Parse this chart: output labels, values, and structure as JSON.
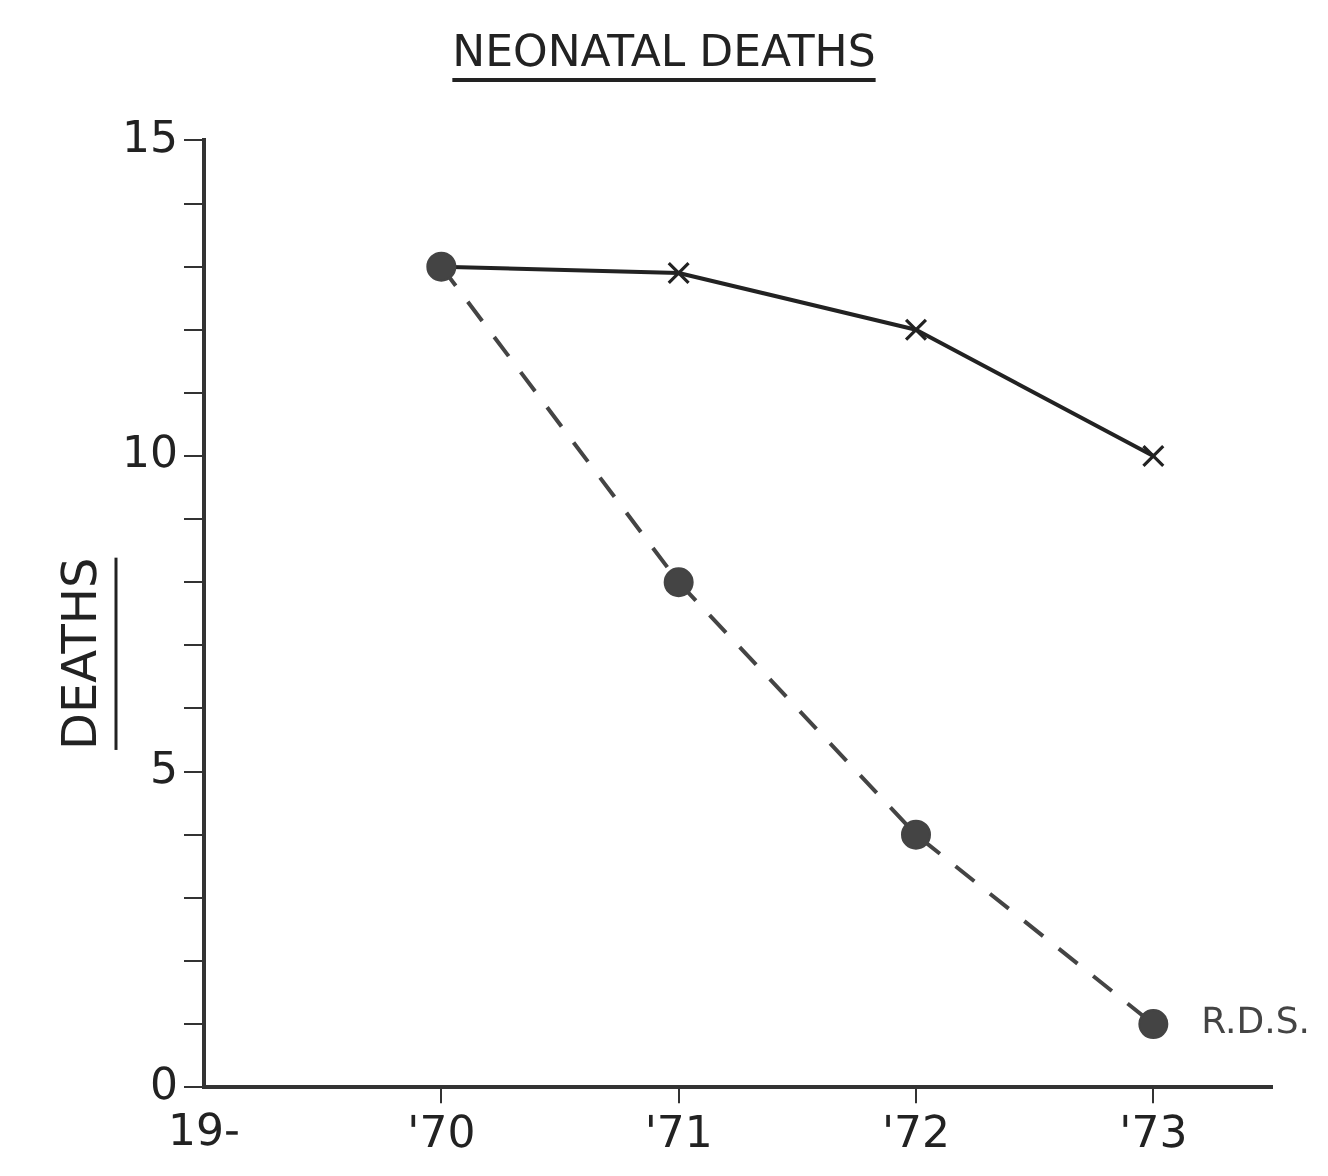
{
  "chart_data": {
    "type": "line",
    "title": "NEONATAL DEATHS",
    "ylabel": "DEATHS",
    "x": [
      1970,
      1971,
      1972,
      1973
    ],
    "xlim": [
      1969,
      1973.5
    ],
    "xlabel": "19-",
    "xticks": [
      {
        "value": 1970,
        "label": "'70"
      },
      {
        "value": 1971,
        "label": "'71"
      },
      {
        "value": 1972,
        "label": "'72"
      },
      {
        "value": 1973,
        "label": "'73"
      }
    ],
    "ylim": [
      0,
      15
    ],
    "yticks": [
      0,
      {
        "value": 1,
        "label": null
      },
      {
        "value": 2,
        "label": null
      },
      {
        "value": 3,
        "label": null
      },
      {
        "value": 4,
        "label": null
      },
      5,
      {
        "value": 6,
        "label": null
      },
      {
        "value": 7,
        "label": null
      },
      {
        "value": 8,
        "label": null
      },
      {
        "value": 9,
        "label": null
      },
      10,
      {
        "value": 11,
        "label": null
      },
      {
        "value": 12,
        "label": null
      },
      {
        "value": 13,
        "label": null
      },
      {
        "value": 14,
        "label": null
      },
      15
    ],
    "grid": false,
    "legend": false,
    "series": [
      {
        "color": "#222222",
        "values": [
          13,
          12.9,
          12,
          10
        ],
        "marker": "cross",
        "line_style": "solid"
      },
      {
        "name": "R.D.S.",
        "color": "#444444",
        "values": [
          13,
          8,
          4,
          1
        ],
        "marker": "circle",
        "line_style": "dashed"
      }
    ]
  }
}
